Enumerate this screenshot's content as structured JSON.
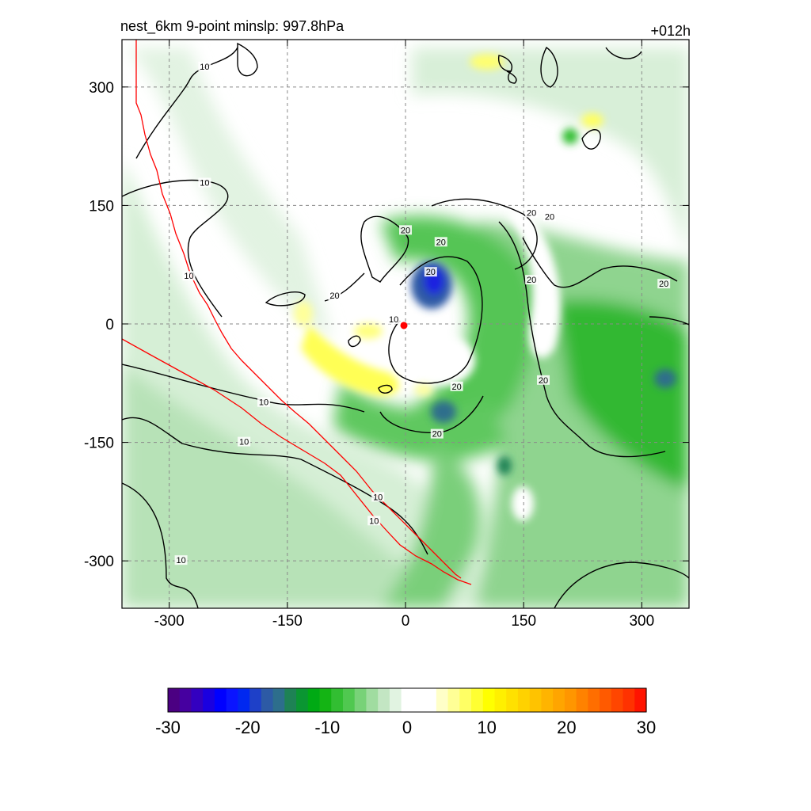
{
  "figure": {
    "title": "nest_6km  9-point minslp: 997.8hPa",
    "forecast_hour": "+012h"
  },
  "chart_data": {
    "type": "heatmap",
    "title": "nest_6km  9-point minslp: 997.8hPa",
    "time_label": "+012h",
    "xlim": [
      -360,
      360
    ],
    "ylim": [
      -360,
      360
    ],
    "x_ticks": [
      -300,
      -150,
      0,
      150,
      300
    ],
    "y_ticks": [
      -300,
      -150,
      0,
      150,
      300
    ],
    "x_tick_labels": [
      "-300",
      "-150",
      "0",
      "150",
      "300"
    ],
    "y_tick_labels": [
      "-300",
      "-150",
      "0",
      "150",
      "300"
    ],
    "grid": true,
    "colorbar": {
      "min": -30,
      "max": 30,
      "ticks": [
        -30,
        -20,
        -10,
        0,
        10,
        20,
        30
      ],
      "tick_labels": [
        "-30",
        "-20",
        "-10",
        "0",
        "10",
        "20",
        "30"
      ],
      "colors": [
        "#4b0082",
        "#4600a0",
        "#3300c0",
        "#1a00e0",
        "#0000ff",
        "#0a14ff",
        "#0028f0",
        "#1e40c8",
        "#2d5aa5",
        "#2d6e8c",
        "#1e8255",
        "#0a9632",
        "#00aa14",
        "#14b414",
        "#32be32",
        "#50c850",
        "#78d278",
        "#a0dca0",
        "#c3e6c3",
        "#e1f3e1",
        "#ffffff",
        "#ffffff",
        "#ffffff",
        "#ffffc8",
        "#ffff96",
        "#ffff64",
        "#ffff32",
        "#ffff00",
        "#fff000",
        "#ffe100",
        "#ffd200",
        "#ffc300",
        "#ffb400",
        "#ffa500",
        "#ff9600",
        "#ff8200",
        "#ff6e00",
        "#ff5a00",
        "#ff4600",
        "#ff3200",
        "#ff1400"
      ]
    },
    "center_marker": {
      "x": -2,
      "y": -2,
      "color": "#ff0000"
    },
    "contour_labels": [
      {
        "text": "10",
        "x": -255,
        "y": 325
      },
      {
        "text": "10",
        "x": -255,
        "y": 178
      },
      {
        "text": "10",
        "x": -275,
        "y": 60
      },
      {
        "text": "10",
        "x": -180,
        "y": -100
      },
      {
        "text": "10",
        "x": -205,
        "y": -150
      },
      {
        "text": "10",
        "x": -35,
        "y": -220
      },
      {
        "text": "10",
        "x": -40,
        "y": -250
      },
      {
        "text": "10",
        "x": -285,
        "y": -300
      },
      {
        "text": "10",
        "x": -15,
        "y": 5
      },
      {
        "text": "20",
        "x": 0,
        "y": 118
      },
      {
        "text": "20",
        "x": -90,
        "y": 35
      },
      {
        "text": "20",
        "x": 45,
        "y": 103
      },
      {
        "text": "20",
        "x": 32,
        "y": 65
      },
      {
        "text": "20",
        "x": 160,
        "y": 140
      },
      {
        "text": "20",
        "x": 183,
        "y": 135
      },
      {
        "text": "20",
        "x": 160,
        "y": 55
      },
      {
        "text": "20",
        "x": 328,
        "y": 50
      },
      {
        "text": "20",
        "x": 65,
        "y": -80
      },
      {
        "text": "20",
        "x": 175,
        "y": -72
      },
      {
        "text": "20",
        "x": 40,
        "y": -140
      }
    ],
    "contour_levels": [
      10,
      20
    ],
    "boundary_color": "#ff0000"
  }
}
